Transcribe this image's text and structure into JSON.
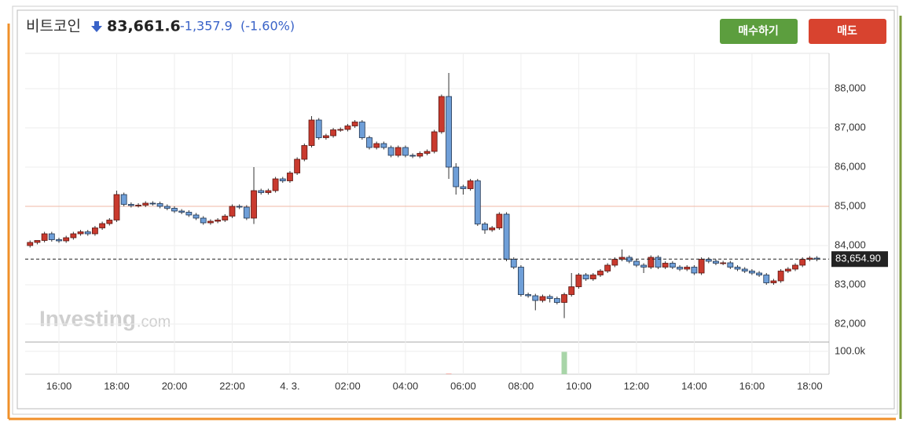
{
  "chart_data": {
    "type": "candlestick",
    "title": "비트코인",
    "price": "83,661.6",
    "change": "-1,357.9",
    "change_pct": "(-1.60%)",
    "buttons": [
      "매수하기",
      "매도"
    ],
    "watermark": [
      "Investing",
      ".com"
    ],
    "up_color": "#c93a2e",
    "down_color": "#6f9fd8",
    "volume_up_color": "#a8d5a8",
    "volume_down_color": "#f2a59c",
    "reference_line": 85000,
    "reference_color": "#f0b9a6",
    "last_price": {
      "value": 83654.9,
      "label": "83,654.90"
    },
    "xlim": [
      14.83,
      42.67
    ],
    "xticks": [
      {
        "value": 16,
        "label": "16:00"
      },
      {
        "value": 18,
        "label": "18:00"
      },
      {
        "value": 20,
        "label": "20:00"
      },
      {
        "value": 22,
        "label": "22:00"
      },
      {
        "value": 24,
        "label": "4. 3."
      },
      {
        "value": 26,
        "label": "02:00"
      },
      {
        "value": 28,
        "label": "04:00"
      },
      {
        "value": 30,
        "label": "06:00"
      },
      {
        "value": 32,
        "label": "08:00"
      },
      {
        "value": 34,
        "label": "10:00"
      },
      {
        "value": 36,
        "label": "12:00"
      },
      {
        "value": 38,
        "label": "14:00"
      },
      {
        "value": 40,
        "label": "16:00"
      },
      {
        "value": 42,
        "label": "18:00"
      }
    ],
    "ylim": [
      81540,
      88900
    ],
    "yticks": [
      {
        "value": 82000,
        "label": "82,000"
      },
      {
        "value": 83000,
        "label": "83,000"
      },
      {
        "value": 84000,
        "label": "84,000"
      },
      {
        "value": 85000,
        "label": "85,000"
      },
      {
        "value": 86000,
        "label": "86,000"
      },
      {
        "value": 87000,
        "label": "87,000"
      },
      {
        "value": 88000,
        "label": "88,000"
      }
    ],
    "volume_ylim": [
      0,
      141000
    ],
    "volume_yticks": [
      {
        "value": 100000,
        "label": "100.0k"
      }
    ],
    "grid": true,
    "x": [
      15,
      15.25,
      15.5,
      15.75,
      16,
      16.25,
      16.5,
      16.75,
      17,
      17.25,
      17.5,
      17.75,
      18,
      18.25,
      18.5,
      18.75,
      19,
      19.25,
      19.5,
      19.75,
      20,
      20.25,
      20.5,
      20.75,
      21,
      21.25,
      21.5,
      21.75,
      22,
      22.25,
      22.5,
      22.75,
      23,
      23.25,
      23.5,
      23.75,
      24,
      24.25,
      24.5,
      24.75,
      25,
      25.25,
      25.5,
      25.75,
      26,
      26.25,
      26.5,
      26.75,
      27,
      27.25,
      27.5,
      27.75,
      28,
      28.25,
      28.5,
      28.75,
      29,
      29.25,
      29.5,
      29.75,
      30,
      30.25,
      30.5,
      30.75,
      31,
      31.25,
      31.5,
      31.75,
      32,
      32.25,
      32.5,
      32.75,
      33,
      33.25,
      33.5,
      33.75,
      34,
      34.25,
      34.5,
      34.75,
      35,
      35.25,
      35.5,
      35.75,
      36,
      36.25,
      36.5,
      36.75,
      37,
      37.25,
      37.5,
      37.75,
      38,
      38.25,
      38.5,
      38.75,
      39,
      39.25,
      39.5,
      39.75,
      40,
      40.25,
      40.5,
      40.75,
      41,
      41.25,
      41.5,
      41.75,
      42,
      42.25
    ],
    "open": [
      84000,
      84080,
      84130,
      84300,
      84150,
      84120,
      84200,
      84300,
      84350,
      84300,
      84450,
      84560,
      84650,
      85300,
      85050,
      85020,
      85030,
      85080,
      85070,
      85000,
      84950,
      84880,
      84850,
      84780,
      84700,
      84580,
      84620,
      84650,
      84750,
      85000,
      84980,
      84700,
      85400,
      85350,
      85400,
      85700,
      85650,
      85850,
      86200,
      86550,
      87200,
      86750,
      86800,
      86950,
      86960,
      87050,
      87150,
      86750,
      86500,
      86600,
      86500,
      86300,
      86500,
      86300,
      86280,
      86350,
      86400,
      86900,
      87800,
      86000,
      85500,
      85450,
      85650,
      84550,
      84400,
      84450,
      84800,
      83650,
      83450,
      82750,
      82720,
      82600,
      82700,
      82650,
      82550,
      82750,
      82950,
      83250,
      83150,
      83250,
      83350,
      83500,
      83650,
      83700,
      83600,
      83500,
      83450,
      83700,
      83450,
      83550,
      83450,
      83400,
      83450,
      83300,
      83650,
      83600,
      83550,
      83560,
      83450,
      83400,
      83350,
      83300,
      83250,
      83050,
      83100,
      83350,
      83400,
      83500,
      83650,
      83680
    ],
    "high": [
      84130,
      84130,
      84350,
      84350,
      84200,
      84250,
      84350,
      84400,
      84400,
      84500,
      84610,
      84700,
      85400,
      85350,
      85100,
      85080,
      85130,
      85130,
      85120,
      85050,
      85000,
      84930,
      84900,
      84830,
      84750,
      84670,
      84700,
      84800,
      85050,
      85050,
      85030,
      86000,
      85450,
      85450,
      85750,
      85750,
      85900,
      86250,
      86600,
      87300,
      87250,
      86850,
      87000,
      87010,
      87100,
      87200,
      87200,
      86800,
      86650,
      86650,
      86550,
      86550,
      86550,
      86350,
      86400,
      86450,
      86950,
      87850,
      88400,
      86100,
      85550,
      85700,
      85700,
      84600,
      84500,
      84850,
      84850,
      83700,
      83500,
      82800,
      82770,
      82750,
      82750,
      82700,
      82800,
      83300,
      83300,
      83300,
      83300,
      83400,
      83550,
      83700,
      83900,
      83750,
      83650,
      83550,
      83750,
      83750,
      83600,
      83600,
      83500,
      83500,
      83500,
      83700,
      83700,
      83650,
      83610,
      83610,
      83500,
      83450,
      83400,
      83350,
      83300,
      83150,
      83400,
      83450,
      83550,
      83700,
      83730,
      83730
    ],
    "low": [
      83950,
      84030,
      84080,
      84100,
      84070,
      84070,
      84150,
      84250,
      84250,
      84250,
      84400,
      84510,
      84600,
      85000,
      84970,
      84970,
      84980,
      85020,
      84950,
      84900,
      84830,
      84800,
      84730,
      84650,
      84530,
      84530,
      84570,
      84600,
      84700,
      84930,
      84650,
      84550,
      85300,
      85300,
      85350,
      85600,
      85600,
      85800,
      86150,
      86500,
      86700,
      86700,
      86750,
      86900,
      86910,
      87000,
      86700,
      86450,
      86450,
      86450,
      86250,
      86250,
      86250,
      86230,
      86230,
      86300,
      86350,
      86850,
      85700,
      85300,
      85300,
      85400,
      84500,
      84300,
      84350,
      84400,
      83600,
      83400,
      82700,
      82670,
      82350,
      82550,
      82550,
      82500,
      82150,
      82700,
      82900,
      83100,
      83100,
      83200,
      83300,
      83450,
      83600,
      83550,
      83450,
      83300,
      83400,
      83400,
      83400,
      83400,
      83350,
      83350,
      83250,
      83250,
      83550,
      83500,
      83500,
      83400,
      83350,
      83300,
      83250,
      83200,
      83000,
      83000,
      83050,
      83300,
      83350,
      83450,
      83600,
      83600
    ],
    "close": [
      84080,
      84130,
      84300,
      84150,
      84120,
      84200,
      84300,
      84350,
      84300,
      84450,
      84560,
      84650,
      85300,
      85050,
      85020,
      85030,
      85080,
      85070,
      85000,
      84950,
      84880,
      84850,
      84780,
      84700,
      84580,
      84620,
      84650,
      84750,
      85000,
      84980,
      84700,
      85400,
      85350,
      85400,
      85700,
      85650,
      85850,
      86200,
      86550,
      87200,
      86750,
      86800,
      86950,
      86960,
      87050,
      87150,
      86750,
      86500,
      86600,
      86500,
      86300,
      86500,
      86300,
      86280,
      86350,
      86400,
      86900,
      87800,
      86000,
      85500,
      85450,
      85650,
      84550,
      84400,
      84450,
      84800,
      83650,
      83450,
      82750,
      82720,
      82600,
      82700,
      82650,
      82550,
      82750,
      82950,
      83250,
      83150,
      83250,
      83350,
      83500,
      83650,
      83700,
      83600,
      83500,
      83450,
      83700,
      83450,
      83550,
      83450,
      83400,
      83450,
      83300,
      83650,
      83600,
      83550,
      83560,
      83450,
      83400,
      83350,
      83300,
      83250,
      83050,
      83100,
      83350,
      83400,
      83500,
      83650,
      83680,
      83655
    ],
    "volume": [
      0,
      0,
      0,
      0,
      0,
      0,
      0,
      0,
      0,
      0,
      0,
      0,
      0,
      0,
      0,
      0,
      0,
      0,
      0,
      0,
      0,
      0,
      0,
      0,
      0,
      0,
      0,
      0,
      0,
      0,
      0,
      0,
      0,
      0,
      0,
      0,
      0,
      0,
      0,
      0,
      0,
      0,
      0,
      0,
      0,
      0,
      0,
      0,
      0,
      0,
      0,
      0,
      0,
      0,
      0,
      0,
      0,
      0,
      3000,
      0,
      0,
      0,
      0,
      0,
      0,
      0,
      0,
      0,
      0,
      0,
      0,
      0,
      0,
      0,
      98000,
      0,
      0,
      0,
      0,
      0,
      0,
      0,
      0,
      0,
      0,
      0,
      0,
      0,
      0,
      0,
      0,
      0,
      0,
      0,
      0,
      0,
      0,
      0,
      0,
      0,
      0,
      0,
      0,
      0,
      0,
      0,
      0,
      0,
      0,
      0
    ]
  }
}
